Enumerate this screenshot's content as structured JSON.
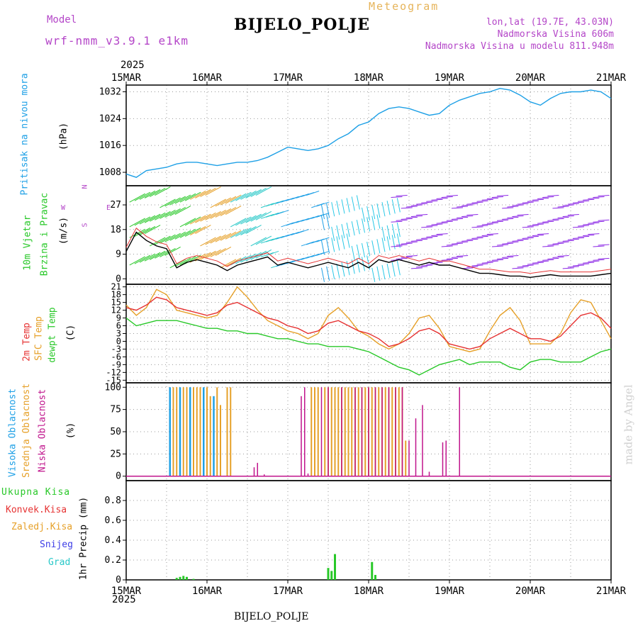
{
  "header": {
    "model_label": "Model",
    "model_name": "wrf-nmm_v3.9.1  e1km",
    "title": "BIJELO_POLJE",
    "meteogram_label": "Meteogram",
    "lonlat": "lon,lat (19.7E, 43.03N)",
    "altitude": "Nadmorska Visina 606m",
    "model_altitude": "Nadmorska Visina u modelu 811.948m",
    "footer_station": "BIJELO_POLJE",
    "credit": "made by Angel",
    "year_top": "2025",
    "year_bottom": "2025"
  },
  "colors": {
    "pressure": "#1ea0e6",
    "wind_speed": "#000000",
    "wind_gust": "#e63232",
    "temp_2m": "#e63232",
    "temp_sfc": "#e6a028",
    "dewpoint": "#28c828",
    "cloud_high": "#1ea0e6",
    "cloud_mid": "#e6a028",
    "cloud_low": "#c0148c",
    "precip_total": "#28c828",
    "precip_conv": "#e63232",
    "precip_frozen": "#e6a028",
    "snow": "#3c3ce6",
    "grad": "#28c8c8",
    "purple_text": "#b446c8"
  },
  "time_axis": {
    "tick_labels": [
      "15MAR",
      "16MAR",
      "17MAR",
      "18MAR",
      "19MAR",
      "20MAR",
      "21MAR"
    ],
    "hours_total": 144
  },
  "panels": {
    "pressure": {
      "labels": [
        "Pritisak na nivou mora",
        "(hPa)"
      ],
      "ticks": [
        "1008",
        "1016",
        "1024",
        "1032"
      ],
      "ylim": [
        1004,
        1034
      ]
    },
    "wind": {
      "labels": [
        "10m Vjetar",
        "Brzina i Pravac",
        "(m/s)"
      ],
      "compass": [
        "N",
        "W",
        "E",
        "S"
      ],
      "ticks": [
        "0",
        "9",
        "18",
        "27"
      ],
      "ylim": [
        -2,
        34
      ]
    },
    "temp": {
      "labels": [
        "2m Temp",
        "SFC Temp",
        "dewpt Temp",
        "(C)"
      ],
      "ticks": [
        "-15",
        "-12",
        "-9",
        "-6",
        "-3",
        "0",
        "3",
        "6",
        "9",
        "12",
        "15",
        "18",
        "21"
      ],
      "ylim": [
        -16,
        22
      ]
    },
    "cloud": {
      "labels": [
        "Visoka Oblacnost",
        "Srednja Oblacnost",
        "Niska Oblacnost",
        "(%)"
      ],
      "ticks": [
        "0",
        "25",
        "50",
        "75",
        "100"
      ],
      "ylim": [
        -5,
        105
      ]
    },
    "precip": {
      "labels": [
        "Ukupna Kisa",
        "Konvek.Kisa",
        "Zaledj.Kisa",
        "Snijeg",
        "Grad",
        "1hr Precip (mm)"
      ],
      "ticks": [
        "0",
        "0.2",
        "0.4",
        "0.6",
        "0.8"
      ],
      "ylim": [
        0,
        1.0
      ]
    }
  },
  "chart_data": {
    "type": "line",
    "title": "BIJELO_POLJE",
    "x_unit": "hours from 15MAR 00UTC",
    "series": [
      {
        "name": "Pritisak na nivou mora",
        "x": [
          0,
          3,
          6,
          9,
          12,
          15,
          18,
          21,
          24,
          27,
          30,
          33,
          36,
          39,
          42,
          45,
          48,
          51,
          54,
          57,
          60,
          63,
          66,
          69,
          72,
          75,
          78,
          81,
          84,
          87,
          90,
          93,
          96,
          99,
          102,
          105,
          108,
          111,
          114,
          117,
          120,
          123,
          126,
          129,
          132,
          135,
          138,
          141,
          144
        ],
        "values": [
          1007.5,
          1006.5,
          1008.5,
          1009,
          1009.5,
          1010.5,
          1011,
          1011,
          1010.5,
          1010,
          1010.5,
          1011,
          1011,
          1011.5,
          1012.5,
          1014,
          1015.5,
          1015,
          1014.5,
          1015,
          1016,
          1018,
          1019.5,
          1022,
          1023,
          1025.5,
          1027,
          1027.5,
          1027,
          1026,
          1025,
          1025.5,
          1028,
          1029.5,
          1030.5,
          1031.5,
          1032,
          1033,
          1032.5,
          1031,
          1029,
          1028,
          1030,
          1031.5,
          1032,
          1032,
          1032.5,
          1032,
          1030
        ]
      },
      {
        "name": "10m wind speed",
        "x": [
          0,
          3,
          6,
          9,
          12,
          15,
          18,
          21,
          24,
          27,
          30,
          33,
          36,
          39,
          42,
          45,
          48,
          51,
          54,
          57,
          60,
          63,
          66,
          69,
          72,
          75,
          78,
          81,
          84,
          87,
          90,
          93,
          96,
          99,
          102,
          105,
          108,
          111,
          114,
          117,
          120,
          123,
          126,
          129,
          132,
          135,
          138,
          141,
          144
        ],
        "values": [
          10,
          17,
          14,
          12,
          11,
          4,
          6,
          7,
          6,
          5,
          3,
          5,
          6,
          7,
          8,
          5,
          6,
          5,
          4,
          5,
          6,
          5,
          4,
          6,
          4,
          7,
          6,
          7,
          6,
          5,
          6,
          5,
          5,
          4,
          3,
          2,
          2,
          1.5,
          1,
          1,
          0.5,
          1,
          1.5,
          1,
          1,
          1,
          1,
          1.5,
          2
        ]
      },
      {
        "name": "2m Temp",
        "x": [
          0,
          3,
          6,
          9,
          12,
          15,
          18,
          21,
          24,
          27,
          30,
          33,
          36,
          39,
          42,
          45,
          48,
          51,
          54,
          57,
          60,
          63,
          66,
          69,
          72,
          75,
          78,
          81,
          84,
          87,
          90,
          93,
          96,
          99,
          102,
          105,
          108,
          111,
          114,
          117,
          120,
          123,
          126,
          129,
          132,
          135,
          138,
          141,
          144
        ],
        "values": [
          13,
          12,
          14,
          17,
          16,
          13,
          12,
          11,
          10,
          11,
          14,
          15,
          13,
          11,
          9,
          8,
          6,
          5,
          3,
          4,
          7,
          8,
          6,
          4,
          3,
          1,
          -2,
          -1,
          1,
          4,
          5,
          3,
          -1,
          -2,
          -3,
          -2,
          1,
          3,
          5,
          3,
          1,
          1,
          0,
          2,
          6,
          10,
          11,
          9,
          5
        ]
      },
      {
        "name": "SFC Temp",
        "x": [
          0,
          3,
          6,
          9,
          12,
          15,
          18,
          21,
          24,
          27,
          30,
          33,
          36,
          39,
          42,
          45,
          48,
          51,
          54,
          57,
          60,
          63,
          66,
          69,
          72,
          75,
          78,
          81,
          84,
          87,
          90,
          93,
          96,
          99,
          102,
          105,
          108,
          111,
          114,
          117,
          120,
          123,
          126,
          129,
          132,
          135,
          138,
          141,
          144
        ],
        "values": [
          14,
          10,
          13,
          20,
          18,
          12,
          11,
          10,
          9,
          10,
          15,
          21,
          17,
          12,
          8,
          6,
          4,
          3,
          1,
          3,
          10,
          13,
          9,
          4,
          2,
          -1,
          -3,
          -1,
          3,
          9,
          10,
          5,
          -2,
          -3,
          -4,
          -3,
          4,
          10,
          13,
          8,
          -1,
          -1,
          -1,
          3,
          11,
          16,
          15,
          8,
          1
        ]
      },
      {
        "name": "dewpt Temp",
        "x": [
          0,
          3,
          6,
          9,
          12,
          15,
          18,
          21,
          24,
          27,
          30,
          33,
          36,
          39,
          42,
          45,
          48,
          51,
          54,
          57,
          60,
          63,
          66,
          69,
          72,
          75,
          78,
          81,
          84,
          87,
          90,
          93,
          96,
          99,
          102,
          105,
          108,
          111,
          114,
          117,
          120,
          123,
          126,
          129,
          132,
          135,
          138,
          141,
          144
        ],
        "values": [
          9,
          6,
          7,
          8,
          8,
          8,
          7,
          6,
          5,
          5,
          4,
          4,
          3,
          3,
          2,
          1,
          1,
          0,
          -1,
          -1,
          -2,
          -2,
          -2,
          -3,
          -4,
          -6,
          -8,
          -10,
          -11,
          -13,
          -11,
          -9,
          -8,
          -7,
          -9,
          -8,
          -8,
          -8,
          -10,
          -11,
          -8,
          -7,
          -7,
          -8,
          -8,
          -8,
          -6,
          -4,
          -3
        ]
      },
      {
        "name": "Visoka Oblacnost",
        "type": "bar",
        "x": [
          13,
          16,
          19,
          23,
          26
        ],
        "values": [
          100,
          100,
          100,
          100,
          90
        ]
      },
      {
        "name": "Srednja Oblacnost",
        "type": "bar",
        "x": [
          14,
          15,
          17,
          18,
          20,
          21,
          22,
          24,
          25,
          27,
          28,
          30,
          31,
          55,
          56,
          57,
          59,
          60,
          61,
          62,
          63,
          64,
          65,
          66,
          67,
          68,
          69,
          70,
          71,
          72,
          73,
          74,
          75,
          76,
          77,
          78,
          79,
          80,
          81,
          82,
          83
        ],
        "values": [
          100,
          100,
          100,
          100,
          100,
          100,
          100,
          100,
          90,
          100,
          80,
          100,
          100,
          100,
          100,
          100,
          100,
          100,
          100,
          100,
          100,
          100,
          100,
          100,
          100,
          100,
          100,
          100,
          100,
          100,
          100,
          100,
          100,
          100,
          100,
          100,
          100,
          100,
          100,
          100,
          40
        ]
      },
      {
        "name": "Niska Oblacnost",
        "type": "bar",
        "x": [
          38,
          39,
          41,
          52,
          53,
          54,
          58,
          60,
          64,
          68,
          70,
          72,
          74,
          76,
          78,
          80,
          82,
          84,
          86,
          88,
          90,
          94,
          95,
          99
        ],
        "values": [
          10,
          15,
          2,
          90,
          100,
          3,
          100,
          100,
          100,
          100,
          100,
          100,
          100,
          100,
          100,
          100,
          100,
          40,
          65,
          80,
          5,
          38,
          40,
          100
        ]
      },
      {
        "name": "Ukupna Kisa",
        "type": "bar",
        "x": [
          15,
          16,
          17,
          18,
          20,
          60,
          61,
          62,
          73,
          74
        ],
        "values": [
          0.02,
          0.03,
          0.04,
          0.03,
          0.01,
          0.12,
          0.09,
          0.26,
          0.18,
          0.05
        ]
      }
    ]
  }
}
